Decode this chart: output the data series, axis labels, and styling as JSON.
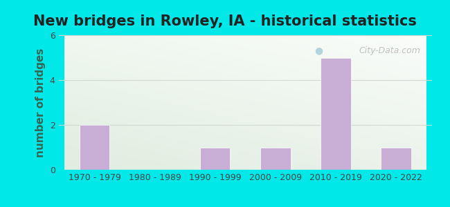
{
  "title": "New bridges in Rowley, IA - historical statistics",
  "categories": [
    "1970 - 1979",
    "1980 - 1989",
    "1990 - 1999",
    "2000 - 2009",
    "2010 - 2019",
    "2020 - 2022"
  ],
  "values": [
    2,
    0,
    1,
    1,
    5,
    1
  ],
  "bar_color": "#c8aed4",
  "bar_edgecolor": "#c8aed4",
  "ylabel": "number of bridges",
  "ylim": [
    0,
    6
  ],
  "yticks": [
    0,
    2,
    4,
    6
  ],
  "background_outer": "#00e8e8",
  "background_inner_topleft": "#e8f5e8",
  "background_inner_topright": "#f8fff8",
  "background_inner_bottom": "#d0ecd0",
  "title_fontsize": 15,
  "ylabel_fontsize": 11,
  "tick_fontsize": 9,
  "watermark": "City-Data.com",
  "grid_color": "#d0d8d0",
  "ylabel_color": "#336655",
  "tick_color": "#444444",
  "title_color": "#222222"
}
